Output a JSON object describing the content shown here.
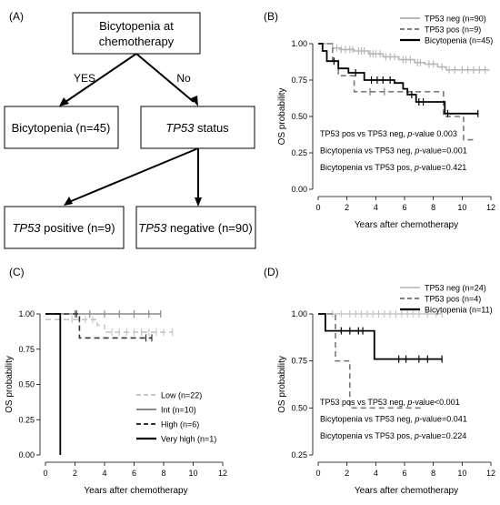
{
  "panel_labels": [
    "(A)",
    "(B)",
    "(C)",
    "(D)"
  ],
  "flowchart": {
    "root": [
      "Bicytopenia at",
      "chemotherapy"
    ],
    "branch_yes": "YES",
    "branch_no": "No",
    "box_bicytopenia": "Bicytopenia (n=45)",
    "box_status_italic": "TP53",
    "box_status_rest": " status",
    "box_positive_italic": "TP53",
    "box_positive_rest": " positive (n=9)",
    "box_negative_italic": "TP53",
    "box_negative_rest": " negative (n=90)"
  },
  "chart_data": [
    {
      "panel": "(B)",
      "type": "line",
      "xlabel": "Years after chemotherapy",
      "ylabel": "OS probability",
      "xlim": [
        0,
        12
      ],
      "ylim": [
        0,
        1
      ],
      "xticks": [
        "0",
        "2",
        "4",
        "6",
        "8",
        "10",
        "12"
      ],
      "yticks": [
        "0.00",
        "0.25",
        "0.50",
        "0.75",
        "1.00"
      ],
      "legend_position": "top-right",
      "annotations": [
        "TP53 pos vs TP53 neg, p-value 0.003",
        "Bicytopenia vs TP53 neg, p-value=0.001",
        "Bicytopenia vs TP53 pos, p-value=0.421"
      ],
      "series": [
        {
          "name": "TP53 neg (n=90)",
          "color": "#b8b8b8",
          "dash": "solid",
          "steps": [
            [
              0,
              1.0
            ],
            [
              1.0,
              0.97
            ],
            [
              1.5,
              0.96
            ],
            [
              2.5,
              0.95
            ],
            [
              3.5,
              0.93
            ],
            [
              4.5,
              0.91
            ],
            [
              5.6,
              0.89
            ],
            [
              6.7,
              0.87
            ],
            [
              7.4,
              0.86
            ],
            [
              8.3,
              0.84
            ],
            [
              8.9,
              0.82
            ],
            [
              11.9,
              0.82
            ]
          ],
          "censor": [
            1.3,
            1.6,
            1.9,
            2.2,
            2.4,
            2.8,
            3.0,
            3.2,
            3.6,
            3.8,
            4.0,
            4.3,
            4.7,
            5.0,
            5.3,
            5.9,
            6.1,
            6.4,
            6.9,
            7.1,
            7.7,
            8.0,
            8.6,
            9.1,
            9.5,
            10.0,
            10.4,
            10.8,
            11.2,
            11.6
          ]
        },
        {
          "name": "TP53 pos (n=9)",
          "color": "#7a7a7a",
          "dash": "dashed",
          "steps": [
            [
              0,
              1.0
            ],
            [
              1.0,
              0.89
            ],
            [
              1.4,
              0.78
            ],
            [
              2.5,
              0.67
            ],
            [
              8.7,
              0.5
            ],
            [
              10.1,
              0.34
            ],
            [
              11.0,
              0.34
            ]
          ],
          "censor": [
            3.6,
            4.6
          ]
        },
        {
          "name": "Bicytopenia (n=45)",
          "color": "#000000",
          "dash": "solid",
          "steps": [
            [
              0,
              1.0
            ],
            [
              0.3,
              0.95
            ],
            [
              0.6,
              0.88
            ],
            [
              1.4,
              0.83
            ],
            [
              2.1,
              0.8
            ],
            [
              3.2,
              0.75
            ],
            [
              5.3,
              0.73
            ],
            [
              5.9,
              0.69
            ],
            [
              6.2,
              0.65
            ],
            [
              6.8,
              0.6
            ],
            [
              8.8,
              0.52
            ],
            [
              11.1,
              0.52
            ]
          ],
          "censor": [
            1.1,
            2.6,
            3.7,
            4.1,
            4.5,
            5.0,
            6.5,
            7.0,
            7.3,
            9.0,
            11.1
          ]
        }
      ]
    },
    {
      "panel": "(C)",
      "type": "line",
      "xlabel": "Years after chemotherapy",
      "ylabel": "OS probability",
      "xlim": [
        0,
        12
      ],
      "ylim": [
        0,
        1
      ],
      "xticks": [
        "0",
        "2",
        "4",
        "6",
        "8",
        "10",
        "12"
      ],
      "yticks": [
        "0.00",
        "0.25",
        "0.50",
        "0.75",
        "1.00"
      ],
      "legend_position": "bottom-right",
      "series": [
        {
          "name": "Low (n=22)",
          "color": "#c6c6c6",
          "dash": "dashed",
          "steps": [
            [
              0,
              0.96
            ],
            [
              3.5,
              0.92
            ],
            [
              4.0,
              0.87
            ],
            [
              8.6,
              0.87
            ]
          ],
          "censor": [
            1.8,
            2.3,
            2.7,
            3.2,
            4.5,
            5.0,
            5.5,
            6.0,
            6.5,
            7.0,
            7.5,
            8.0,
            8.6
          ]
        },
        {
          "name": "Int (n=10)",
          "color": "#8a8a8a",
          "dash": "solid",
          "steps": [
            [
              0,
              1.0
            ],
            [
              7.8,
              1.0
            ]
          ],
          "censor": [
            2.0,
            3.0,
            4.0,
            5.0,
            6.0,
            7.0,
            7.8
          ]
        },
        {
          "name": "High (n=6)",
          "color": "#333333",
          "dash": "dashed",
          "steps": [
            [
              0,
              1.0
            ],
            [
              2.3,
              0.83
            ],
            [
              7.2,
              0.83
            ]
          ],
          "censor": [
            2.1,
            6.8,
            7.2
          ]
        },
        {
          "name": "Very high (n=1)",
          "color": "#000000",
          "dash": "solid",
          "steps": [
            [
              0,
              1.0
            ],
            [
              1.0,
              0.0
            ]
          ],
          "censor": []
        }
      ]
    },
    {
      "panel": "(D)",
      "type": "line",
      "xlabel": "Years after chemotherapy",
      "ylabel": "OS probability",
      "xlim": [
        0,
        12
      ],
      "ylim": [
        0.25,
        1
      ],
      "xticks": [
        "0",
        "2",
        "4",
        "6",
        "8",
        "10",
        "12"
      ],
      "yticks": [
        "0.25",
        "0.50",
        "0.75",
        "1.00"
      ],
      "legend_position": "top-right",
      "annotations": [
        "TP53 pos vs TP53 neg, p-value<0.001",
        "Bicytopenia vs TP53 neg, p-value=0.041",
        "Bicytopenia vs TP53 pos, p-value=0.224"
      ],
      "series": [
        {
          "name": "TP53 neg (n=24)",
          "color": "#c6c6c6",
          "dash": "solid",
          "steps": [
            [
              0,
              1.0
            ],
            [
              8.6,
              1.0
            ]
          ],
          "censor": [
            1.0,
            1.6,
            2.2,
            2.6,
            3.0,
            3.4,
            3.8,
            4.2,
            4.6,
            5.0,
            5.4,
            5.8,
            6.2,
            6.6,
            7.0,
            7.6,
            8.2,
            8.6
          ]
        },
        {
          "name": "TP53 pos (n=4)",
          "color": "#7a7a7a",
          "dash": "dashed",
          "steps": [
            [
              0,
              1.0
            ],
            [
              1.2,
              0.75
            ],
            [
              2.2,
              0.5
            ],
            [
              7.2,
              0.5
            ]
          ],
          "censor": []
        },
        {
          "name": "Bicytopenia (n=11)",
          "color": "#000000",
          "dash": "solid",
          "steps": [
            [
              0,
              1.0
            ],
            [
              0.5,
              0.91
            ],
            [
              3.9,
              0.76
            ],
            [
              8.6,
              0.76
            ]
          ],
          "censor": [
            1.6,
            2.2,
            2.8,
            3.1,
            5.6,
            6.1,
            7.0,
            7.6,
            8.6
          ]
        }
      ]
    }
  ]
}
